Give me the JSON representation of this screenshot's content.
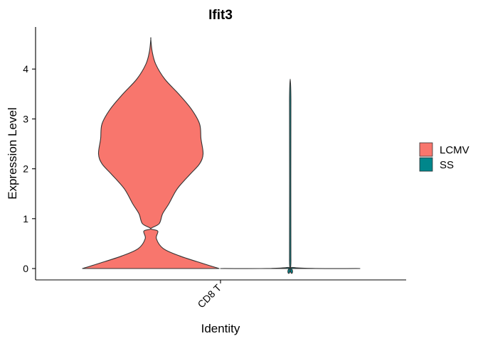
{
  "chart_data": {
    "type": "violin",
    "title": "Ifit3",
    "xlabel": "Identity",
    "ylabel": "Expression Level",
    "categories": [
      "CD8 T"
    ],
    "ylim": [
      -0.22,
      4.8
    ],
    "yticks": [
      "0",
      "1",
      "2",
      "3",
      "4"
    ],
    "grid": false,
    "legend_position": "right",
    "series": [
      {
        "name": "LCMV",
        "color": "#F8766D",
        "max": 4.6,
        "density_profile": [
          [
            0.0,
            0.98
          ],
          [
            0.1,
            0.75
          ],
          [
            0.25,
            0.42
          ],
          [
            0.4,
            0.18
          ],
          [
            0.6,
            0.08
          ],
          [
            0.75,
            0.1
          ],
          [
            0.8,
            0.0
          ],
          [
            0.9,
            0.12
          ],
          [
            1.1,
            0.17
          ],
          [
            1.3,
            0.26
          ],
          [
            1.6,
            0.38
          ],
          [
            1.9,
            0.57
          ],
          [
            2.1,
            0.7
          ],
          [
            2.3,
            0.75
          ],
          [
            2.6,
            0.72
          ],
          [
            2.9,
            0.7
          ],
          [
            3.2,
            0.58
          ],
          [
            3.5,
            0.4
          ],
          [
            3.8,
            0.2
          ],
          [
            4.1,
            0.07
          ],
          [
            4.35,
            0.02
          ],
          [
            4.6,
            0.0
          ]
        ]
      },
      {
        "name": "SS",
        "color": "#00868B",
        "max": 3.4,
        "density_profile": [
          [
            0.0,
            1.0
          ],
          [
            0.02,
            0.05
          ],
          [
            0.2,
            0.01
          ],
          [
            3.4,
            0.01
          ]
        ]
      }
    ]
  }
}
